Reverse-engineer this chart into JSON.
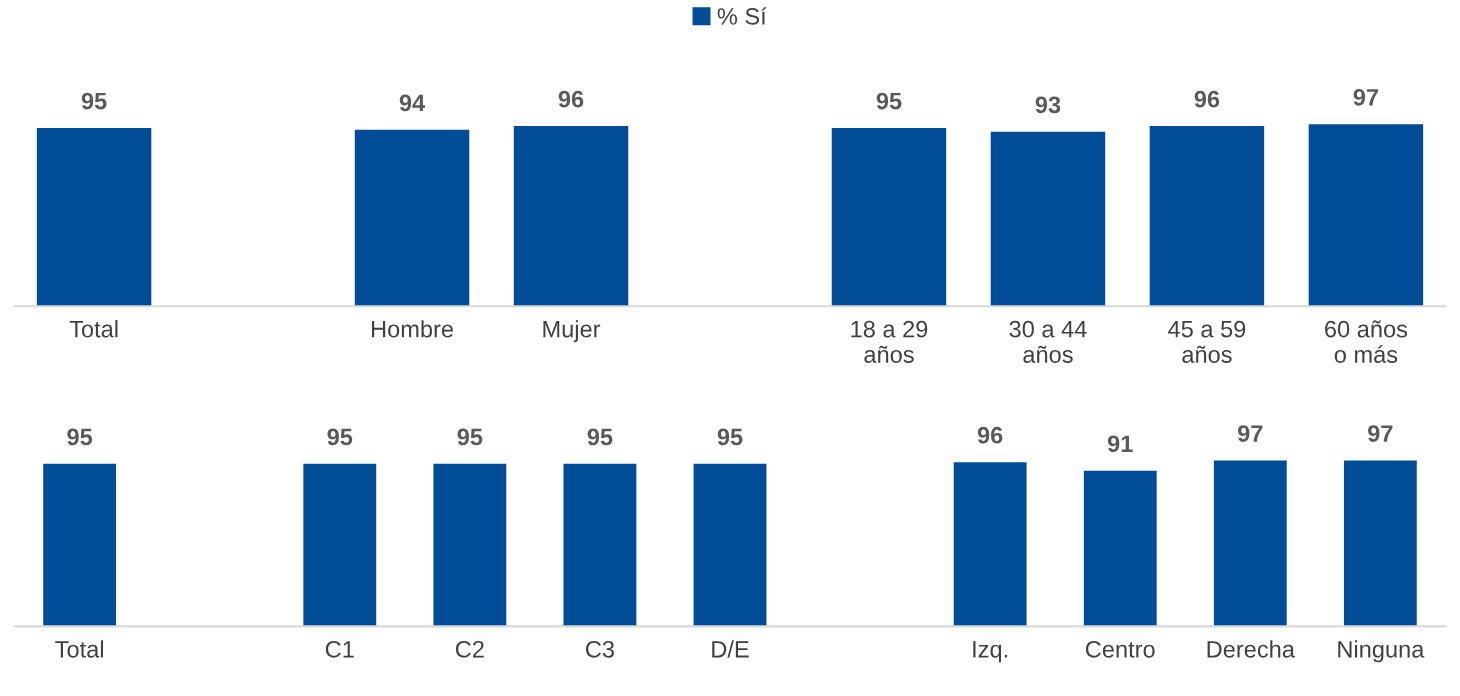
{
  "chart_data": [
    {
      "type": "bar",
      "categories": [
        "Total",
        null,
        "Hombre",
        "Mujer",
        null,
        "18 a 29\naños",
        "30 a 44\naños",
        "45 a 59\naños",
        "60 años\no más"
      ],
      "series": [
        {
          "name": "% Sí",
          "color": "#004c97",
          "values": [
            95,
            null,
            94,
            96,
            null,
            95,
            93,
            96,
            97
          ]
        }
      ],
      "data_labels": true,
      "legend": "top",
      "grid": false,
      "tick_labels": "x"
    },
    {
      "type": "bar",
      "categories": [
        "Total",
        null,
        "C1",
        "C2",
        "C3",
        "D/E",
        null,
        "Izq.",
        "Centro",
        "Derecha",
        "Ninguna"
      ],
      "series": [
        {
          "color": "#004c97",
          "values": [
            95,
            null,
            95,
            95,
            95,
            95,
            null,
            96,
            91,
            97,
            97
          ]
        }
      ],
      "data_labels": true,
      "legend": false,
      "grid": false,
      "tick_labels": "x"
    }
  ]
}
